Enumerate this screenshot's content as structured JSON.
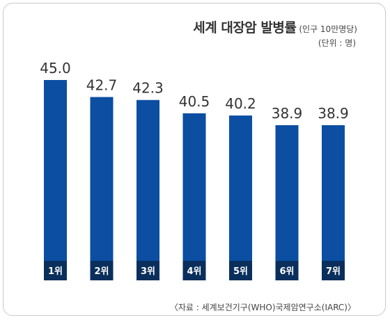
{
  "chart_data": {
    "type": "bar",
    "title": "세계 대장암 발병률",
    "subtitle": "(인구 10만명당)",
    "unit": "(단위 : 명)",
    "categories": [
      "1위",
      "2위",
      "3위",
      "4위",
      "5위",
      "6위",
      "7위"
    ],
    "values": [
      45.0,
      42.7,
      42.3,
      40.5,
      40.2,
      38.9,
      38.9
    ],
    "value_labels": [
      "45.0",
      "42.7",
      "42.3",
      "40.5",
      "40.2",
      "38.9",
      "38.9"
    ],
    "xlabel": "",
    "ylabel": "",
    "grid": false,
    "legend": "none",
    "bar_color": "#0b4ea2",
    "rank_box_color": "#0a2f5c",
    "source": "〈자료 : 세계보건기구(WHO)국제암연구소(IARC)〉"
  }
}
